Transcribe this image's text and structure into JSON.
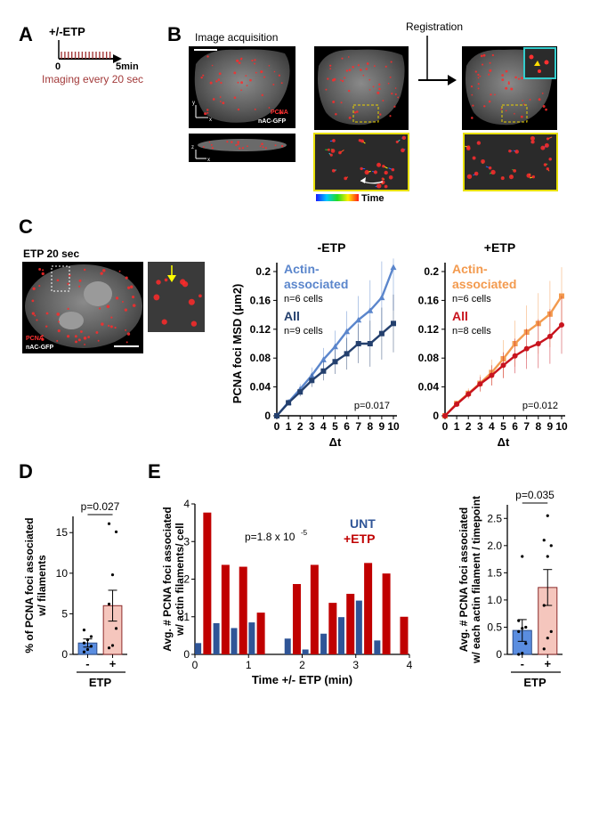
{
  "panels": {
    "A": "A",
    "B": "B",
    "C": "C",
    "D": "D",
    "E": "E"
  },
  "panel_a": {
    "etp_label": "+/-ETP",
    "start": "0",
    "end": "5min",
    "caption": "Imaging every 20 sec",
    "caption_color": "#a33a3a"
  },
  "panel_b": {
    "acquisition": "Image acquisition",
    "registration": "Registration",
    "pcna": "PCNA",
    "nac": "nAC-GFP",
    "axis_x": "x",
    "axis_y": "y",
    "axis_z": "z",
    "time": "Time"
  },
  "panel_c": {
    "image_title": "ETP 20 sec",
    "pcna": "PCNA",
    "nac": "nAC-GFP"
  },
  "colors": {
    "minus_actin": "#5b86cc",
    "minus_all": "#24406e",
    "plus_actin": "#f39a4e",
    "plus_all": "#c8141e",
    "unt_bar": "#2f5597",
    "etp_bar": "#c00000",
    "d_minus_fill": "#5a8de0",
    "d_plus_fill": "#f5c6bd",
    "d_plus_stroke": "#8b2a2a"
  },
  "chart_data": [
    {
      "type": "line",
      "id": "msd_minus",
      "title": "-ETP",
      "xlabel": "Δt",
      "ylabel": "PCNA foci MSD (μm2)",
      "x": [
        0,
        1,
        2,
        3,
        4,
        5,
        6,
        7,
        8,
        9,
        10
      ],
      "xlim": [
        0,
        10
      ],
      "ylim": [
        0,
        0.2
      ],
      "yticks": [
        "0",
        "0.04",
        "0.08",
        "0.12",
        "0.16",
        "0.2"
      ],
      "pvalue": "p=0.017",
      "series": [
        {
          "name": "Actin-\nassociated",
          "label_line1": "Actin-",
          "label_line2": "associated",
          "n": "n=6 cells",
          "marker": "triangle",
          "values": [
            0,
            0.019,
            0.037,
            0.056,
            0.078,
            0.096,
            0.117,
            0.133,
            0.146,
            0.164,
            0.206
          ],
          "err": [
            0,
            0.004,
            0.007,
            0.011,
            0.016,
            0.022,
            0.028,
            0.033,
            0.042,
            0.05,
            0.06
          ]
        },
        {
          "name": "All",
          "label_line1": "All",
          "n": "n=9 cells",
          "marker": "square",
          "values": [
            0,
            0.018,
            0.033,
            0.049,
            0.062,
            0.075,
            0.086,
            0.1,
            0.1,
            0.114,
            0.128
          ],
          "err": [
            0,
            0.003,
            0.006,
            0.009,
            0.013,
            0.017,
            0.022,
            0.027,
            0.032,
            0.036,
            0.04
          ]
        }
      ]
    },
    {
      "type": "line",
      "id": "msd_plus",
      "title": "+ETP",
      "xlabel": "Δt",
      "ylabel": "",
      "x": [
        0,
        1,
        2,
        3,
        4,
        5,
        6,
        7,
        8,
        9,
        10
      ],
      "xlim": [
        0,
        10
      ],
      "ylim": [
        0,
        0.2
      ],
      "yticks": [
        "0",
        "0.04",
        "0.08",
        "0.12",
        "0.16",
        "0.2"
      ],
      "pvalue": "p=0.012",
      "series": [
        {
          "name": "Actin-\nassociated",
          "label_line1": "Actin-",
          "label_line2": "associated",
          "n": "n=6 cells",
          "marker": "square",
          "values": [
            0,
            0.017,
            0.031,
            0.045,
            0.06,
            0.079,
            0.1,
            0.116,
            0.128,
            0.141,
            0.166
          ],
          "err": [
            0,
            0.004,
            0.007,
            0.012,
            0.018,
            0.026,
            0.032,
            0.037,
            0.042,
            0.046,
            0.04
          ]
        },
        {
          "name": "All",
          "label_line1": "All",
          "n": "n=8 cells",
          "marker": "circle",
          "values": [
            0,
            0.016,
            0.03,
            0.044,
            0.056,
            0.07,
            0.083,
            0.093,
            0.1,
            0.11,
            0.126
          ],
          "err": [
            0,
            0.003,
            0.006,
            0.01,
            0.014,
            0.018,
            0.024,
            0.028,
            0.034,
            0.038,
            0.04
          ]
        }
      ]
    },
    {
      "type": "bar",
      "id": "panel_d",
      "ylabel_line1": "% of PCNA foci associated",
      "ylabel_line2": "w/ filaments",
      "xlabel": "ETP",
      "categories": [
        "-",
        "+"
      ],
      "values": [
        1.4,
        6.0
      ],
      "errors": [
        0.5,
        1.9
      ],
      "ylim": [
        0,
        17
      ],
      "yticks": [
        "0",
        "5",
        "10",
        "15"
      ],
      "points": [
        [
          0.3,
          0.6,
          1.0,
          1.4,
          1.8,
          2.2,
          3.0
        ],
        [
          0.8,
          1.1,
          3.2,
          6.2,
          9.8,
          15.1,
          16.1
        ]
      ],
      "pvalue": "p=0.027"
    },
    {
      "type": "bar",
      "id": "panel_e_time",
      "ylabel_line1": "Avg. # PCNA foci associated",
      "ylabel_line2": "w/ actin filaments/ cell",
      "xlabel": "Time +/- ETP (min)",
      "xlim": [
        0,
        4
      ],
      "ylim": [
        0,
        4
      ],
      "xticks": [
        "0",
        "1",
        "2",
        "3",
        "4"
      ],
      "yticks": [
        "0",
        "1",
        "2",
        "3",
        "4"
      ],
      "pvalue_base": "p=1.8 x 10",
      "pvalue_exp": "-5",
      "series": [
        {
          "name": "UNT",
          "x": [
            0.06,
            0.4,
            0.73,
            1.06,
            1.73,
            2.06,
            2.4,
            2.73,
            3.06,
            3.4
          ],
          "values": [
            0.3,
            0.83,
            0.7,
            0.85,
            0.42,
            0.13,
            0.55,
            0.99,
            1.43,
            0.37
          ]
        },
        {
          "name": "+ETP",
          "x": [
            0.23,
            0.57,
            0.9,
            1.23,
            1.9,
            2.23,
            2.57,
            2.9,
            3.23,
            3.57,
            3.9
          ],
          "values": [
            3.77,
            2.38,
            2.33,
            1.11,
            1.87,
            2.38,
            1.37,
            1.61,
            2.43,
            2.15,
            1.0
          ]
        }
      ]
    },
    {
      "type": "bar",
      "id": "panel_e_avg",
      "ylabel_line1": "Avg. # PCNA foci associated",
      "ylabel_line2": "w/ each actin filament / timepoint",
      "xlabel": "ETP",
      "categories": [
        "-",
        "+"
      ],
      "values": [
        0.44,
        1.23
      ],
      "errors": [
        0.2,
        0.33
      ],
      "ylim": [
        0,
        2.75
      ],
      "yticks": [
        "0",
        "0.5",
        "1.0",
        "1.5",
        "2.0",
        "2.5"
      ],
      "points": [
        [
          0.0,
          0.02,
          0.2,
          0.42,
          0.48,
          0.5,
          0.62,
          1.8
        ],
        [
          0.1,
          0.3,
          0.42,
          0.9,
          1.8,
          2.0,
          2.1,
          2.55
        ]
      ],
      "pvalue": "p=0.035"
    }
  ]
}
